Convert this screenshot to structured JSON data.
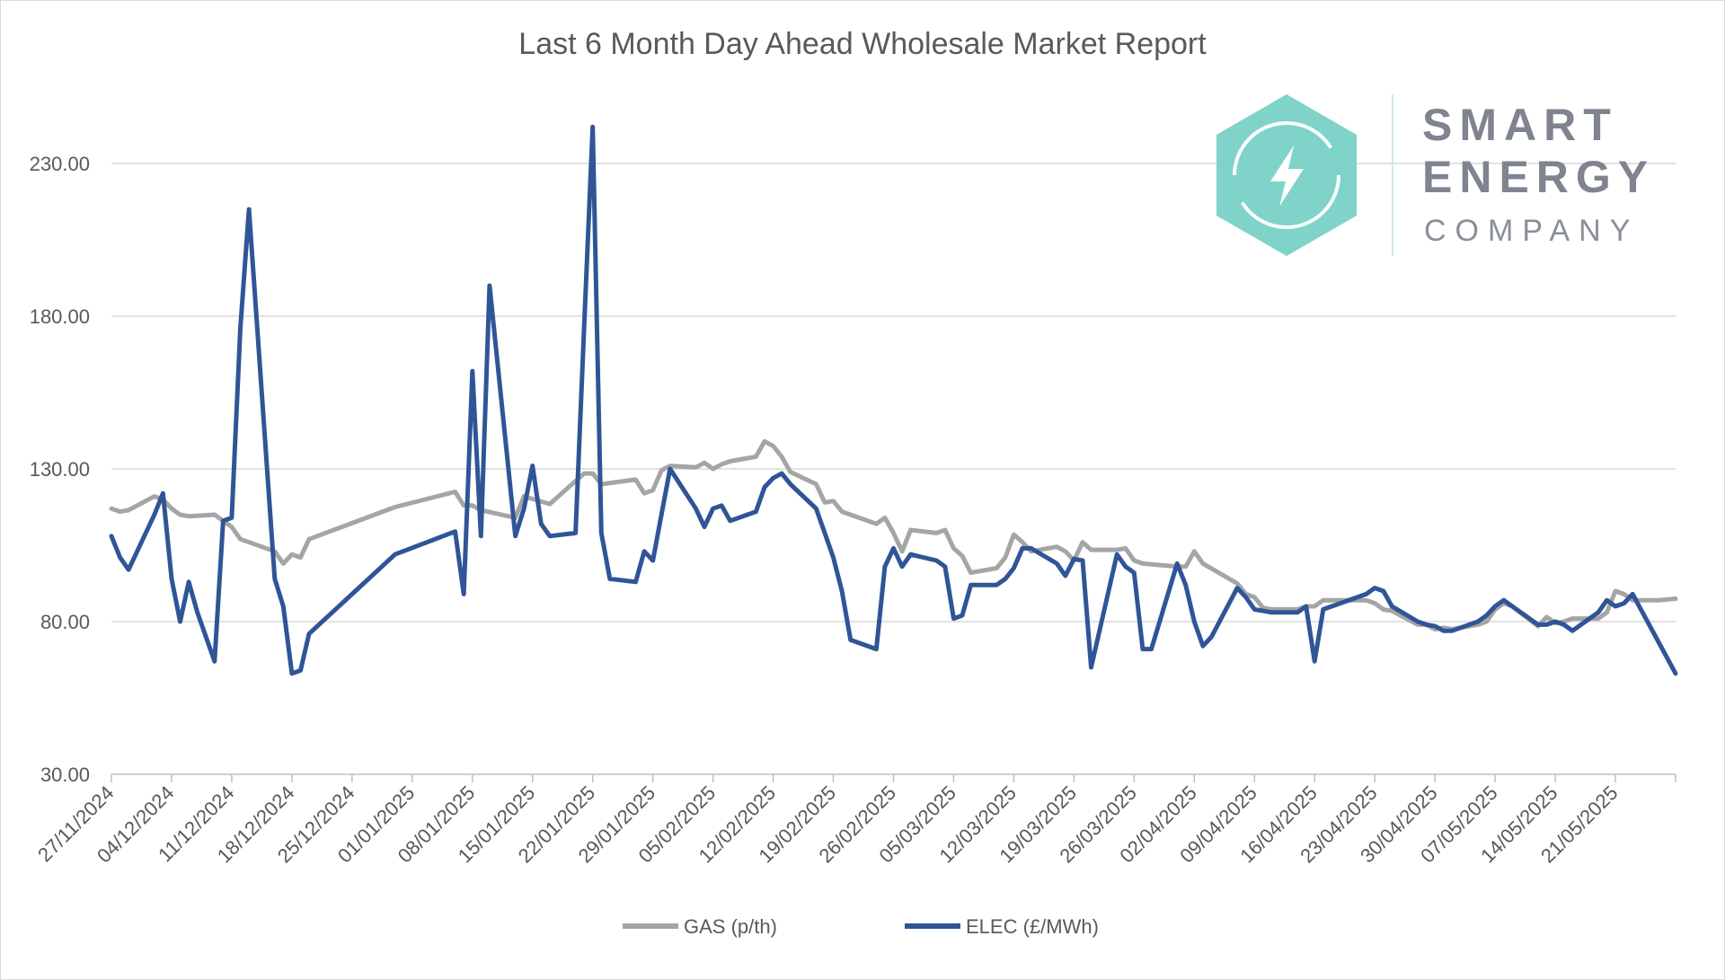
{
  "chart_data": {
    "type": "line",
    "title": "Last 6 Month Day Ahead Wholesale Market Report",
    "ylim": [
      30,
      230
    ],
    "yticks": [
      "230.00",
      "180.00",
      "130.00",
      "80.00",
      "30.00"
    ],
    "ytick_values": [
      230,
      180,
      130,
      80,
      30
    ],
    "x_start": "27/11/2024",
    "x_end": "28/05/2025",
    "xticks": [
      "27/11/2024",
      "04/12/2024",
      "11/12/2024",
      "18/12/2024",
      "25/12/2024",
      "01/01/2025",
      "08/01/2025",
      "15/01/2025",
      "22/01/2025",
      "29/01/2025",
      "05/02/2025",
      "12/02/2025",
      "19/02/2025",
      "26/02/2025",
      "05/03/2025",
      "12/03/2025",
      "19/03/2025",
      "26/03/2025",
      "02/04/2025",
      "09/04/2025",
      "16/04/2025",
      "23/04/2025",
      "30/04/2025",
      "07/05/2025",
      "14/05/2025",
      "21/05/2025"
    ],
    "grid": true,
    "legend": "bottom",
    "series": [
      {
        "name": "GAS (p/th)",
        "color": "#a5a5a5",
        "points": [
          [
            "27/11/2024",
            117
          ],
          [
            "28/11/2024",
            116
          ],
          [
            "29/11/2024",
            116.5
          ],
          [
            "02/12/2024",
            121
          ],
          [
            "03/12/2024",
            120
          ],
          [
            "04/12/2024",
            117
          ],
          [
            "05/12/2024",
            115
          ],
          [
            "06/12/2024",
            114.5
          ],
          [
            "09/12/2024",
            115
          ],
          [
            "10/12/2024",
            113
          ],
          [
            "11/12/2024",
            111
          ],
          [
            "12/12/2024",
            107
          ],
          [
            "16/12/2024",
            103
          ],
          [
            "17/12/2024",
            99
          ],
          [
            "18/12/2024",
            102
          ],
          [
            "19/12/2024",
            101
          ],
          [
            "20/12/2024",
            107
          ],
          [
            "30/12/2024",
            117.5
          ],
          [
            "06/01/2025",
            122.5
          ],
          [
            "07/01/2025",
            118
          ],
          [
            "08/01/2025",
            118
          ],
          [
            "09/01/2025",
            116.5
          ],
          [
            "13/01/2025",
            114
          ],
          [
            "14/01/2025",
            121
          ],
          [
            "17/01/2025",
            118.5
          ],
          [
            "20/01/2025",
            126
          ],
          [
            "21/01/2025",
            128.5
          ],
          [
            "22/01/2025",
            128.5
          ],
          [
            "23/01/2025",
            125
          ],
          [
            "27/01/2025",
            126.5
          ],
          [
            "28/01/2025",
            122
          ],
          [
            "29/01/2025",
            123
          ],
          [
            "30/01/2025",
            129.5
          ],
          [
            "31/01/2025",
            131
          ],
          [
            "03/02/2025",
            130.5
          ],
          [
            "04/02/2025",
            132
          ],
          [
            "05/02/2025",
            130
          ],
          [
            "06/02/2025",
            131.5
          ],
          [
            "07/02/2025",
            132.5
          ],
          [
            "10/02/2025",
            134
          ],
          [
            "11/02/2025",
            139
          ],
          [
            "12/02/2025",
            137.5
          ],
          [
            "13/02/2025",
            134
          ],
          [
            "14/02/2025",
            129
          ],
          [
            "17/02/2025",
            125
          ],
          [
            "18/02/2025",
            119
          ],
          [
            "19/02/2025",
            119.5
          ],
          [
            "20/02/2025",
            116
          ],
          [
            "24/02/2025",
            112
          ],
          [
            "25/02/2025",
            114
          ],
          [
            "26/02/2025",
            109
          ],
          [
            "27/02/2025",
            103
          ],
          [
            "28/02/2025",
            110
          ],
          [
            "03/03/2025",
            109
          ],
          [
            "04/03/2025",
            110
          ],
          [
            "05/03/2025",
            104
          ],
          [
            "06/03/2025",
            101.5
          ],
          [
            "07/03/2025",
            96
          ],
          [
            "10/03/2025",
            97.5
          ],
          [
            "11/03/2025",
            101
          ],
          [
            "12/03/2025",
            108.5
          ],
          [
            "13/03/2025",
            106
          ],
          [
            "14/03/2025",
            103
          ],
          [
            "17/03/2025",
            104.5
          ],
          [
            "18/03/2025",
            103
          ],
          [
            "19/03/2025",
            100
          ],
          [
            "20/03/2025",
            106
          ],
          [
            "21/03/2025",
            103.5
          ],
          [
            "24/03/2025",
            103.5
          ],
          [
            "25/03/2025",
            104
          ],
          [
            "26/03/2025",
            100
          ],
          [
            "27/03/2025",
            99
          ],
          [
            "31/03/2025",
            98
          ],
          [
            "01/04/2025",
            98
          ],
          [
            "02/04/2025",
            103
          ],
          [
            "03/04/2025",
            99
          ],
          [
            "07/04/2025",
            92.5
          ],
          [
            "08/04/2025",
            89
          ],
          [
            "09/04/2025",
            88
          ],
          [
            "10/04/2025",
            84.5
          ],
          [
            "11/04/2025",
            84
          ],
          [
            "14/04/2025",
            84
          ],
          [
            "15/04/2025",
            85
          ],
          [
            "16/04/2025",
            85
          ],
          [
            "17/04/2025",
            87
          ],
          [
            "22/04/2025",
            87
          ],
          [
            "23/04/2025",
            86
          ],
          [
            "24/04/2025",
            84
          ],
          [
            "25/04/2025",
            83.5
          ],
          [
            "28/04/2025",
            79
          ],
          [
            "29/04/2025",
            79
          ],
          [
            "30/04/2025",
            77.5
          ],
          [
            "01/05/2025",
            78
          ],
          [
            "02/05/2025",
            77.5
          ],
          [
            "05/05/2025",
            79
          ],
          [
            "06/05/2025",
            80
          ],
          [
            "07/05/2025",
            84
          ],
          [
            "08/05/2025",
            86
          ],
          [
            "09/05/2025",
            85
          ],
          [
            "12/05/2025",
            78.5
          ],
          [
            "13/05/2025",
            81.5
          ],
          [
            "14/05/2025",
            79.5
          ],
          [
            "15/05/2025",
            80
          ],
          [
            "16/05/2025",
            81
          ],
          [
            "19/05/2025",
            81
          ],
          [
            "20/05/2025",
            83
          ],
          [
            "21/05/2025",
            90
          ],
          [
            "22/05/2025",
            89
          ],
          [
            "23/05/2025",
            87
          ],
          [
            "26/05/2025",
            87
          ],
          [
            "28/05/2025",
            87.5
          ]
        ]
      },
      {
        "name": "ELEC (£/MWh)",
        "color": "#2f5597",
        "points": [
          [
            "27/11/2024",
            108
          ],
          [
            "28/11/2024",
            101
          ],
          [
            "29/11/2024",
            97
          ],
          [
            "02/12/2024",
            115
          ],
          [
            "03/12/2024",
            122
          ],
          [
            "04/12/2024",
            94
          ],
          [
            "05/12/2024",
            80
          ],
          [
            "06/12/2024",
            93
          ],
          [
            "07/12/2024",
            83
          ],
          [
            "09/12/2024",
            67
          ],
          [
            "10/12/2024",
            113
          ],
          [
            "11/12/2024",
            114
          ],
          [
            "12/12/2024",
            176
          ],
          [
            "13/12/2024",
            215
          ],
          [
            "16/12/2024",
            94
          ],
          [
            "17/12/2024",
            85
          ],
          [
            "18/12/2024",
            63
          ],
          [
            "19/12/2024",
            64
          ],
          [
            "20/12/2024",
            76
          ],
          [
            "30/12/2024",
            102
          ],
          [
            "06/01/2025",
            109.5
          ],
          [
            "07/01/2025",
            89
          ],
          [
            "08/01/2025",
            162
          ],
          [
            "09/01/2025",
            108
          ],
          [
            "10/01/2025",
            190
          ],
          [
            "13/01/2025",
            108
          ],
          [
            "14/01/2025",
            117
          ],
          [
            "15/01/2025",
            131
          ],
          [
            "16/01/2025",
            112
          ],
          [
            "17/01/2025",
            108
          ],
          [
            "20/01/2025",
            109
          ],
          [
            "21/01/2025",
            176
          ],
          [
            "22/01/2025",
            242
          ],
          [
            "23/01/2025",
            109
          ],
          [
            "24/01/2025",
            94
          ],
          [
            "27/01/2025",
            93
          ],
          [
            "28/01/2025",
            103
          ],
          [
            "29/01/2025",
            100
          ],
          [
            "30/01/2025",
            115
          ],
          [
            "31/01/2025",
            130
          ],
          [
            "03/02/2025",
            117
          ],
          [
            "04/02/2025",
            111
          ],
          [
            "05/02/2025",
            117
          ],
          [
            "06/02/2025",
            118
          ],
          [
            "07/02/2025",
            113
          ],
          [
            "10/02/2025",
            116
          ],
          [
            "11/02/2025",
            124
          ],
          [
            "12/02/2025",
            127
          ],
          [
            "13/02/2025",
            128.5
          ],
          [
            "14/02/2025",
            125
          ],
          [
            "17/02/2025",
            117
          ],
          [
            "18/02/2025",
            109
          ],
          [
            "19/02/2025",
            101
          ],
          [
            "20/02/2025",
            90
          ],
          [
            "21/02/2025",
            74
          ],
          [
            "24/02/2025",
            71
          ],
          [
            "25/02/2025",
            98
          ],
          [
            "26/02/2025",
            104
          ],
          [
            "27/02/2025",
            98
          ],
          [
            "28/02/2025",
            102
          ],
          [
            "03/03/2025",
            100
          ],
          [
            "04/03/2025",
            98
          ],
          [
            "05/03/2025",
            81
          ],
          [
            "06/03/2025",
            82
          ],
          [
            "07/03/2025",
            92
          ],
          [
            "10/03/2025",
            92
          ],
          [
            "11/03/2025",
            94
          ],
          [
            "12/03/2025",
            97.5
          ],
          [
            "13/03/2025",
            104
          ],
          [
            "14/03/2025",
            104
          ],
          [
            "17/03/2025",
            99
          ],
          [
            "18/03/2025",
            95
          ],
          [
            "19/03/2025",
            100.5
          ],
          [
            "20/03/2025",
            100
          ],
          [
            "21/03/2025",
            65
          ],
          [
            "24/03/2025",
            102
          ],
          [
            "25/03/2025",
            98
          ],
          [
            "26/03/2025",
            96
          ],
          [
            "27/03/2025",
            71
          ],
          [
            "28/03/2025",
            71
          ],
          [
            "31/03/2025",
            99
          ],
          [
            "01/04/2025",
            92
          ],
          [
            "02/04/2025",
            80
          ],
          [
            "03/04/2025",
            72
          ],
          [
            "04/04/2025",
            75
          ],
          [
            "07/04/2025",
            91
          ],
          [
            "08/04/2025",
            88
          ],
          [
            "09/04/2025",
            84
          ],
          [
            "10/04/2025",
            83.5
          ],
          [
            "11/04/2025",
            83
          ],
          [
            "14/04/2025",
            83
          ],
          [
            "15/04/2025",
            85
          ],
          [
            "16/04/2025",
            67
          ],
          [
            "17/04/2025",
            84
          ],
          [
            "22/04/2025",
            89
          ],
          [
            "23/04/2025",
            91
          ],
          [
            "24/04/2025",
            90
          ],
          [
            "25/04/2025",
            85
          ],
          [
            "28/04/2025",
            80
          ],
          [
            "29/04/2025",
            79
          ],
          [
            "30/04/2025",
            78.5
          ],
          [
            "01/05/2025",
            77
          ],
          [
            "02/05/2025",
            77
          ],
          [
            "05/05/2025",
            80
          ],
          [
            "06/05/2025",
            82
          ],
          [
            "07/05/2025",
            85
          ],
          [
            "08/05/2025",
            87
          ],
          [
            "09/05/2025",
            85
          ],
          [
            "12/05/2025",
            79
          ],
          [
            "13/05/2025",
            79
          ],
          [
            "14/05/2025",
            80
          ],
          [
            "15/05/2025",
            79
          ],
          [
            "16/05/2025",
            77
          ],
          [
            "19/05/2025",
            83
          ],
          [
            "20/05/2025",
            87
          ],
          [
            "21/05/2025",
            85
          ],
          [
            "22/05/2025",
            86
          ],
          [
            "23/05/2025",
            89
          ],
          [
            "28/05/2025",
            63
          ]
        ]
      }
    ]
  },
  "logo": {
    "line1": "SMART",
    "line2": "ENERGY",
    "line3": "COMPANY",
    "hex_color": "#7fd3c8",
    "icon": "lightning-bolt-icon"
  }
}
